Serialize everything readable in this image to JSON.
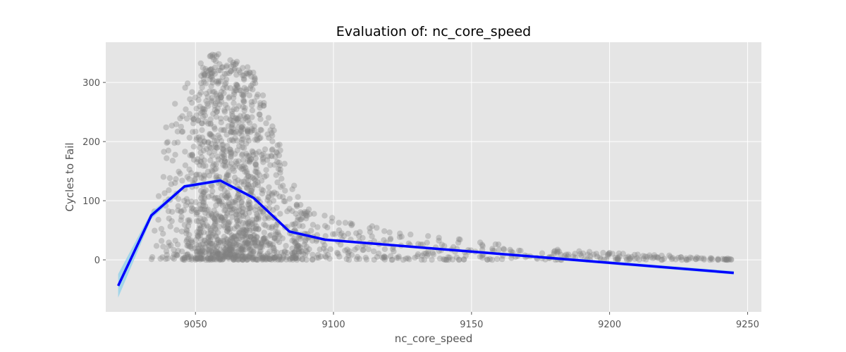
{
  "chart_data": {
    "type": "scatter",
    "title": "Evaluation of: nc_core_speed",
    "xlabel": "nc_core_speed",
    "ylabel": "Cycles to Fail",
    "xlim": [
      9017.5,
      9255
    ],
    "ylim": [
      -88,
      368
    ],
    "xticks": [
      9050,
      9100,
      9150,
      9200,
      9250
    ],
    "yticks": [
      0,
      100,
      200,
      300
    ],
    "grid": true,
    "background": "#e5e5e5",
    "colors": {
      "points": "#808080",
      "trend_line": "#0000ff",
      "confidence_band": "#87ceeb"
    },
    "scatter_envelope": {
      "x": [
        9022,
        9028,
        9034,
        9040,
        9046,
        9052,
        9058,
        9064,
        9071,
        9077,
        9084,
        9090,
        9097,
        9110,
        9130,
        9150,
        9170,
        9190,
        9210,
        9228,
        9245
      ],
      "y_max": [
        12,
        40,
        160,
        240,
        300,
        335,
        355,
        345,
        320,
        250,
        140,
        90,
        75,
        60,
        45,
        32,
        22,
        15,
        10,
        6,
        3
      ]
    },
    "trend_line": {
      "x": [
        9022,
        9034,
        9046,
        9059,
        9071,
        9084,
        9097,
        9245
      ],
      "y": [
        -44,
        75,
        124,
        134,
        105,
        48,
        34,
        -22
      ],
      "band_halfwidth": [
        20,
        6,
        3,
        3,
        3,
        3,
        2,
        3
      ]
    }
  }
}
